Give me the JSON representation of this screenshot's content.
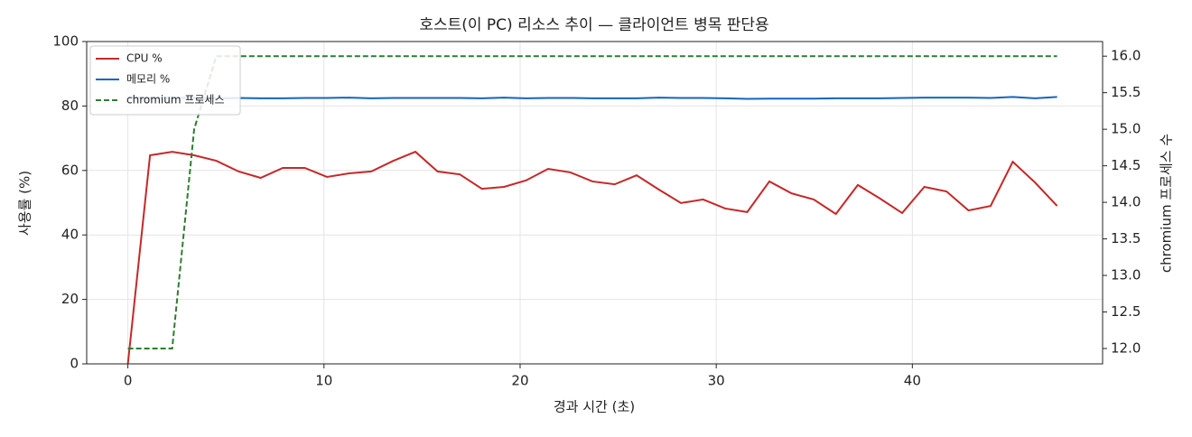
{
  "chart_data": {
    "type": "line",
    "title": "호스트(이 PC) 리소스 추이 — 클라이언트 병목 판단용",
    "xlabel": "경과 시간 (초)",
    "ylabel": "사용률 (%)",
    "y2label": "chromium 프로세스 수",
    "x": [
      0,
      1.13,
      2.26,
      3.38,
      4.51,
      5.64,
      6.77,
      7.9,
      9.02,
      10.15,
      11.28,
      12.41,
      13.54,
      14.66,
      15.79,
      16.92,
      18.05,
      19.18,
      20.3,
      21.43,
      22.56,
      23.69,
      24.82,
      25.94,
      27.07,
      28.2,
      29.33,
      30.46,
      31.58,
      32.71,
      33.84,
      34.97,
      36.1,
      37.22,
      38.35,
      39.48,
      40.61,
      41.74,
      42.86,
      43.99,
      45.12,
      46.25,
      47.38
    ],
    "series": [
      {
        "name": "CPU %",
        "color": "#c62828",
        "linestyle": "solid",
        "axis": "y",
        "values": [
          0,
          64.7,
          65.8,
          64.7,
          63,
          59.7,
          57.7,
          60.8,
          60.8,
          58,
          59.1,
          59.7,
          63,
          65.8,
          59.7,
          58.8,
          54.3,
          54.9,
          56.9,
          60.5,
          59.4,
          56.6,
          55.7,
          58.5,
          54.1,
          49.9,
          51,
          48.2,
          47.1,
          56.6,
          52.9,
          51,
          46.5,
          55.5,
          51.3,
          46.8,
          54.9,
          53.5,
          47.6,
          49,
          62.7,
          56.3,
          49
        ]
      },
      {
        "name": "메모리 %",
        "color": "#1565c0",
        "linestyle": "solid",
        "axis": "y",
        "values": [
          82.6,
          82.5,
          82.6,
          82.5,
          82.4,
          82.5,
          82.4,
          82.4,
          82.5,
          82.5,
          82.6,
          82.4,
          82.5,
          82.5,
          82.5,
          82.5,
          82.4,
          82.6,
          82.4,
          82.5,
          82.5,
          82.4,
          82.4,
          82.4,
          82.6,
          82.5,
          82.5,
          82.4,
          82.2,
          82.3,
          82.3,
          82.3,
          82.4,
          82.4,
          82.4,
          82.5,
          82.6,
          82.6,
          82.6,
          82.5,
          82.8,
          82.4,
          82.8
        ]
      },
      {
        "name": "chromium 프로세스",
        "color": "#2e7d32",
        "linestyle": "dashed",
        "axis": "y2",
        "values": [
          12,
          12,
          12,
          15,
          16,
          16,
          16,
          16,
          16,
          16,
          16,
          16,
          16,
          16,
          16,
          16,
          16,
          16,
          16,
          16,
          16,
          16,
          16,
          16,
          16,
          16,
          16,
          16,
          16,
          16,
          16,
          16,
          16,
          16,
          16,
          16,
          16,
          16,
          16,
          16,
          16,
          16,
          16
        ]
      }
    ],
    "xlim": [
      -2.1,
      49.7
    ],
    "xticks": [
      0,
      10,
      20,
      30,
      40
    ],
    "ylim": [
      0,
      100
    ],
    "yticks": [
      0,
      20,
      40,
      60,
      80,
      100
    ],
    "y2lim": [
      11.79,
      16.2
    ],
    "y2ticks": [
      {
        "value": 12,
        "label": "12.0"
      },
      12.5,
      {
        "value": 13,
        "label": "13.0"
      },
      13.5,
      {
        "value": 14,
        "label": "14.0"
      },
      14.5,
      {
        "value": 15,
        "label": "15.0"
      },
      15.5,
      {
        "value": 16,
        "label": "16.0"
      }
    ],
    "grid": true,
    "legend": "upper left"
  }
}
